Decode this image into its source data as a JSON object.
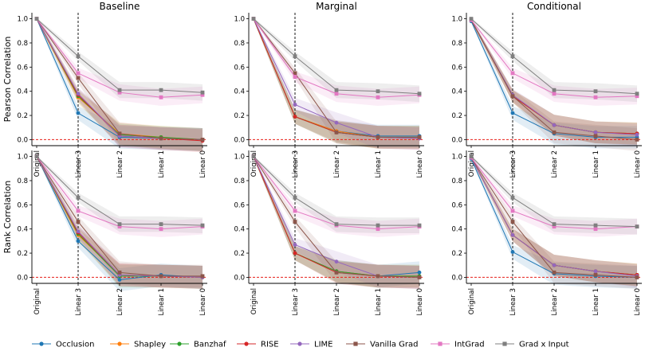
{
  "chart_data": {
    "type": "line",
    "x": [
      "Original",
      "Linear 3",
      "Linear 2",
      "Linear 1",
      "Linear 0"
    ],
    "ylim": [
      -0.05,
      1.05
    ],
    "yticks": [
      0.0,
      0.2,
      0.4,
      0.6,
      0.8,
      1.0
    ],
    "vline_at": "Linear 3",
    "hline_at": 0.0,
    "legend_position": "bottom",
    "series_colors": {
      "Occlusion": "#1f77b4",
      "Shapley": "#ff7f0e",
      "Banzhaf": "#2ca02c",
      "RISE": "#d62728",
      "LIME": "#9467bd",
      "Vanilla Grad": "#8c564b",
      "IntGrad": "#e377c2",
      "Grad x Input": "#7f7f7f"
    },
    "row_labels": [
      "Pearson Correlation",
      "Rank Correlation"
    ],
    "column_titles": [
      "Baseline",
      "Marginal",
      "Conditional"
    ],
    "panels": [
      {
        "title": "Baseline",
        "ylabel": "Pearson Correlation",
        "series": [
          {
            "name": "Occlusion",
            "values": [
              1.0,
              0.22,
              0.02,
              0.01,
              0.0
            ]
          },
          {
            "name": "Shapley",
            "values": [
              1.0,
              0.35,
              0.05,
              0.02,
              0.0
            ]
          },
          {
            "name": "Banzhaf",
            "values": [
              1.0,
              0.36,
              0.04,
              0.02,
              0.0
            ]
          },
          {
            "name": "RISE",
            "values": [
              1.0,
              0.37,
              0.03,
              0.01,
              -0.01
            ]
          },
          {
            "name": "LIME",
            "values": [
              1.0,
              0.38,
              0.03,
              0.01,
              0.0
            ]
          },
          {
            "name": "Vanilla Grad",
            "values": [
              1.0,
              0.51,
              0.05,
              0.01,
              0.0
            ]
          },
          {
            "name": "IntGrad",
            "values": [
              1.0,
              0.55,
              0.39,
              0.35,
              0.37
            ]
          },
          {
            "name": "Grad x Input",
            "values": [
              1.0,
              0.69,
              0.41,
              0.41,
              0.39
            ]
          }
        ]
      },
      {
        "title": "Marginal",
        "ylabel": "",
        "series": [
          {
            "name": "Occlusion",
            "values": [
              1.0,
              0.19,
              0.07,
              0.03,
              0.03
            ]
          },
          {
            "name": "Shapley",
            "values": [
              1.0,
              0.19,
              0.07,
              0.02,
              0.02
            ]
          },
          {
            "name": "Banzhaf",
            "values": [
              1.0,
              0.19,
              0.06,
              0.02,
              0.02
            ]
          },
          {
            "name": "RISE",
            "values": [
              1.0,
              0.19,
              0.06,
              0.02,
              0.01
            ]
          },
          {
            "name": "LIME",
            "values": [
              1.0,
              0.29,
              0.14,
              0.02,
              0.01
            ]
          },
          {
            "name": "Vanilla Grad",
            "values": [
              1.0,
              0.55,
              0.06,
              0.02,
              0.02
            ]
          },
          {
            "name": "IntGrad",
            "values": [
              1.0,
              0.52,
              0.38,
              0.35,
              0.37
            ]
          },
          {
            "name": "Grad x Input",
            "values": [
              1.0,
              0.69,
              0.41,
              0.4,
              0.38
            ]
          }
        ]
      },
      {
        "title": "Conditional",
        "ylabel": "",
        "series": [
          {
            "name": "Occlusion",
            "values": [
              0.98,
              0.22,
              0.05,
              0.02,
              0.02
            ]
          },
          {
            "name": "Shapley",
            "values": [
              0.99,
              0.36,
              0.12,
              0.06,
              0.05
            ]
          },
          {
            "name": "Banzhaf",
            "values": [
              0.99,
              0.36,
              0.12,
              0.06,
              0.05
            ]
          },
          {
            "name": "RISE",
            "values": [
              0.99,
              0.36,
              0.12,
              0.06,
              0.05
            ]
          },
          {
            "name": "LIME",
            "values": [
              0.99,
              0.37,
              0.12,
              0.06,
              0.04
            ]
          },
          {
            "name": "Vanilla Grad",
            "values": [
              0.99,
              0.36,
              0.06,
              0.03,
              0.0
            ]
          },
          {
            "name": "IntGrad",
            "values": [
              0.99,
              0.55,
              0.38,
              0.35,
              0.36
            ]
          },
          {
            "name": "Grad x Input",
            "values": [
              1.0,
              0.69,
              0.41,
              0.4,
              0.38
            ]
          }
        ]
      },
      {
        "title": "",
        "ylabel": "Rank Correlation",
        "series": [
          {
            "name": "Occlusion",
            "values": [
              1.0,
              0.3,
              -0.02,
              0.02,
              0.0
            ]
          },
          {
            "name": "Shapley",
            "values": [
              1.0,
              0.35,
              0.02,
              0.01,
              0.0
            ]
          },
          {
            "name": "Banzhaf",
            "values": [
              1.0,
              0.36,
              0.01,
              0.01,
              0.0
            ]
          },
          {
            "name": "RISE",
            "values": [
              1.0,
              0.37,
              0.02,
              0.01,
              0.0
            ]
          },
          {
            "name": "LIME",
            "values": [
              1.0,
              0.38,
              0.02,
              0.01,
              0.0
            ]
          },
          {
            "name": "Vanilla Grad",
            "values": [
              1.0,
              0.46,
              0.04,
              0.01,
              0.01
            ]
          },
          {
            "name": "IntGrad",
            "values": [
              1.0,
              0.55,
              0.42,
              0.4,
              0.42
            ]
          },
          {
            "name": "Grad x Input",
            "values": [
              1.0,
              0.66,
              0.44,
              0.44,
              0.43
            ]
          }
        ]
      },
      {
        "title": "",
        "ylabel": "",
        "series": [
          {
            "name": "Occlusion",
            "values": [
              1.0,
              0.2,
              0.05,
              0.01,
              0.04
            ]
          },
          {
            "name": "Shapley",
            "values": [
              1.0,
              0.2,
              0.05,
              0.01,
              0.01
            ]
          },
          {
            "name": "Banzhaf",
            "values": [
              1.0,
              0.2,
              0.05,
              0.01,
              0.01
            ]
          },
          {
            "name": "RISE",
            "values": [
              1.0,
              0.2,
              0.04,
              0.01,
              0.0
            ]
          },
          {
            "name": "LIME",
            "values": [
              1.0,
              0.27,
              0.13,
              0.01,
              0.0
            ]
          },
          {
            "name": "Vanilla Grad",
            "values": [
              1.0,
              0.46,
              0.04,
              0.01,
              0.0
            ]
          },
          {
            "name": "IntGrad",
            "values": [
              1.0,
              0.55,
              0.43,
              0.4,
              0.42
            ]
          },
          {
            "name": "Grad x Input",
            "values": [
              1.0,
              0.66,
              0.44,
              0.43,
              0.43
            ]
          }
        ]
      },
      {
        "title": "",
        "ylabel": "",
        "series": [
          {
            "name": "Occlusion",
            "values": [
              0.98,
              0.21,
              0.03,
              0.01,
              0.0
            ]
          },
          {
            "name": "Shapley",
            "values": [
              0.99,
              0.35,
              0.1,
              0.05,
              0.02
            ]
          },
          {
            "name": "Banzhaf",
            "values": [
              0.99,
              0.35,
              0.1,
              0.05,
              0.02
            ]
          },
          {
            "name": "RISE",
            "values": [
              0.99,
              0.35,
              0.1,
              0.05,
              0.02
            ]
          },
          {
            "name": "LIME",
            "values": [
              0.99,
              0.35,
              0.1,
              0.05,
              0.01
            ]
          },
          {
            "name": "Vanilla Grad",
            "values": [
              0.99,
              0.46,
              0.04,
              0.02,
              0.0
            ]
          },
          {
            "name": "IntGrad",
            "values": [
              0.99,
              0.55,
              0.42,
              0.4,
              0.42
            ]
          },
          {
            "name": "Grad x Input",
            "values": [
              1.0,
              0.66,
              0.44,
              0.43,
              0.42
            ]
          }
        ]
      }
    ]
  }
}
